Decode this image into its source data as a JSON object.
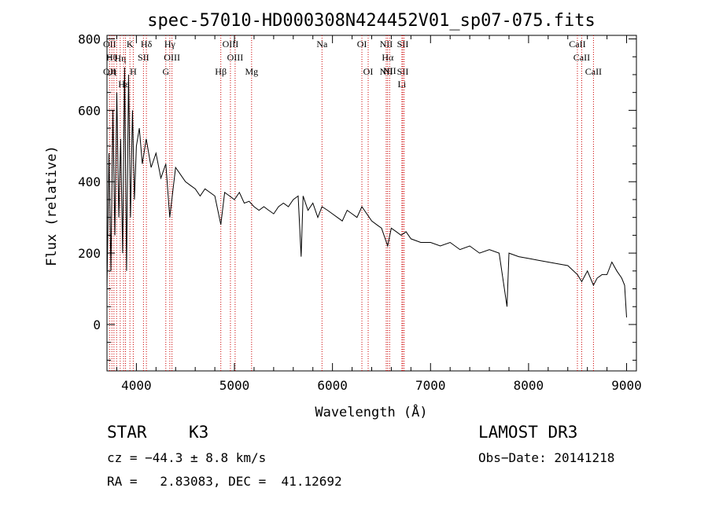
{
  "chart_data": {
    "type": "line",
    "title": "spec-57010-HD000308N424452V01_sp07-075.fits",
    "xlabel": "Wavelength (Å)",
    "ylabel": "Flux (relative)",
    "xlim": [
      3700,
      9100
    ],
    "ylim": [
      -130,
      810
    ],
    "xticks": [
      4000,
      5000,
      6000,
      7000,
      8000,
      9000
    ],
    "xtick_labels": [
      "4000",
      "5000",
      "6000",
      "7000",
      "8000",
      "9000"
    ],
    "yticks": [
      0,
      200,
      400,
      600,
      800
    ],
    "ytick_labels": [
      "0",
      "200",
      "400",
      "600",
      "800"
    ],
    "grid": false,
    "series": [
      {
        "name": "spectrum",
        "x": [
          3700,
          3720,
          3740,
          3760,
          3780,
          3800,
          3820,
          3840,
          3860,
          3880,
          3900,
          3920,
          3940,
          3960,
          3980,
          4000,
          4030,
          4060,
          4100,
          4150,
          4200,
          4250,
          4300,
          4340,
          4400,
          4450,
          4500,
          4550,
          4600,
          4650,
          4700,
          4750,
          4800,
          4861,
          4900,
          4950,
          5000,
          5050,
          5100,
          5150,
          5200,
          5250,
          5300,
          5350,
          5400,
          5450,
          5500,
          5550,
          5600,
          5650,
          5680,
          5700,
          5750,
          5800,
          5850,
          5893,
          5950,
          6000,
          6050,
          6100,
          6150,
          6200,
          6250,
          6300,
          6350,
          6400,
          6450,
          6500,
          6563,
          6600,
          6650,
          6700,
          6750,
          6800,
          6900,
          7000,
          7100,
          7200,
          7300,
          7400,
          7500,
          7600,
          7700,
          7780,
          7800,
          7900,
          8000,
          8100,
          8200,
          8300,
          8400,
          8498,
          8542,
          8600,
          8662,
          8700,
          8750,
          8800,
          8850,
          8900,
          8950,
          8980,
          9000
        ],
        "y": [
          100,
          480,
          150,
          600,
          250,
          650,
          300,
          520,
          200,
          720,
          150,
          700,
          300,
          600,
          350,
          500,
          550,
          450,
          520,
          440,
          480,
          410,
          450,
          300,
          440,
          420,
          400,
          390,
          380,
          360,
          380,
          370,
          360,
          280,
          370,
          360,
          350,
          370,
          340,
          345,
          330,
          320,
          330,
          320,
          310,
          330,
          340,
          330,
          350,
          360,
          190,
          360,
          320,
          340,
          300,
          330,
          320,
          310,
          300,
          290,
          320,
          310,
          300,
          330,
          310,
          290,
          280,
          270,
          220,
          270,
          260,
          250,
          260,
          240,
          230,
          230,
          220,
          230,
          210,
          220,
          200,
          210,
          200,
          50,
          200,
          190,
          185,
          180,
          175,
          170,
          165,
          140,
          120,
          150,
          110,
          130,
          140,
          140,
          175,
          150,
          130,
          110,
          20
        ]
      }
    ],
    "line_markers": [
      {
        "wavelength": 3727,
        "top": "OII",
        "bottom": "OII"
      },
      {
        "wavelength": 3750,
        "top": "Hθ",
        "bottom": ""
      },
      {
        "wavelength": 3771,
        "top": "η",
        "bottom": ""
      },
      {
        "wavelength": 3798,
        "top": "",
        "bottom": ""
      },
      {
        "wavelength": 3835,
        "top": "",
        "bottom": "Hη"
      },
      {
        "wavelength": 3869,
        "top": "Hε",
        "bottom": ""
      },
      {
        "wavelength": 3889,
        "top": "",
        "bottom": ""
      },
      {
        "wavelength": 3934,
        "top": "K",
        "bottom": ""
      },
      {
        "wavelength": 3968,
        "top": "",
        "bottom": "H"
      },
      {
        "wavelength": 4072,
        "top": "SII",
        "bottom": ""
      },
      {
        "wavelength": 4102,
        "top": "Hδ",
        "bottom": ""
      },
      {
        "wavelength": 4300,
        "top": "",
        "bottom": "G"
      },
      {
        "wavelength": 4341,
        "top": "Hγ",
        "bottom": ""
      },
      {
        "wavelength": 4363,
        "top": "OIII",
        "bottom": ""
      },
      {
        "wavelength": 4861,
        "top": "",
        "bottom": "Hβ"
      },
      {
        "wavelength": 4959,
        "top": "OIII",
        "bottom": ""
      },
      {
        "wavelength": 5007,
        "top": "OIII",
        "bottom": ""
      },
      {
        "wavelength": 5175,
        "top": "",
        "bottom": "Mg"
      },
      {
        "wavelength": 5893,
        "top": "Na",
        "bottom": ""
      },
      {
        "wavelength": 6300,
        "top": "OI",
        "bottom": ""
      },
      {
        "wavelength": 6364,
        "top": "",
        "bottom": "OI"
      },
      {
        "wavelength": 6548,
        "top": "NII",
        "bottom": "NII"
      },
      {
        "wavelength": 6563,
        "top": "Hα",
        "bottom": ""
      },
      {
        "wavelength": 6583,
        "top": "NII",
        "bottom": ""
      },
      {
        "wavelength": 6708,
        "top": "Li",
        "bottom": ""
      },
      {
        "wavelength": 6717,
        "top": "SII",
        "bottom": "SII"
      },
      {
        "wavelength": 6731,
        "top": "",
        "bottom": ""
      },
      {
        "wavelength": 8498,
        "top": "CaII",
        "bottom": ""
      },
      {
        "wavelength": 8542,
        "top": "CaII",
        "bottom": ""
      },
      {
        "wavelength": 8662,
        "top": "",
        "bottom": "CaII"
      }
    ]
  },
  "info": {
    "object_class": "STAR",
    "subclass": "K3",
    "survey": "LAMOST DR3",
    "cz": "cz = −44.3 ± 8.8 km/s",
    "obs_date": "Obs−Date: 20141218",
    "coords": "RA =   2.83083, DEC =  41.12692"
  },
  "colors": {
    "line": "#000000",
    "marker": "#cc0000",
    "axis": "#000000"
  }
}
